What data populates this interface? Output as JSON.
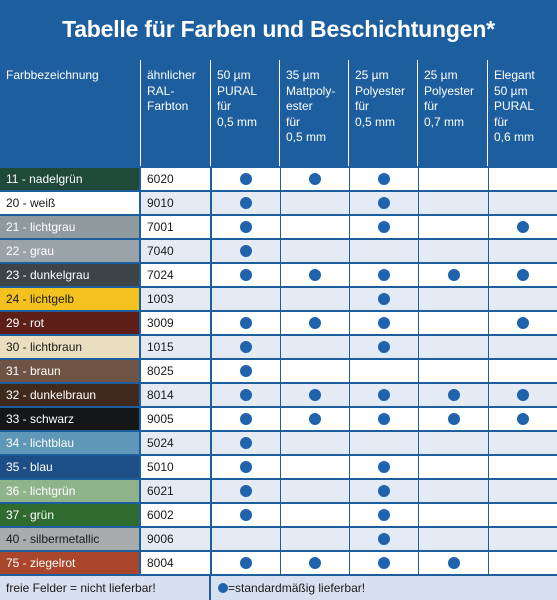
{
  "title": "Tabelle für Farben und Beschichtungen*",
  "headers": [
    "Farbbezeichnung",
    "ähnlicher\nRAL-\nFarbton",
    "50 µm\nPURAL\nfür\n0,5 mm",
    "35 µm\nMattpoly-\nester\nfür\n0,5 mm",
    "25 µm\nPolyester\nfür\n0,5 mm",
    "25 µm\nPolyester\nfür\n0,7 mm",
    "Elegant\n50 µm\nPURAL\nfür\n0,6 mm"
  ],
  "rows": [
    {
      "name": "11 - nadelgrün",
      "ral": "6020",
      "swatch": "#1f4a3a",
      "text": "#ffffff",
      "marks": [
        true,
        true,
        true,
        false,
        false
      ]
    },
    {
      "name": "20 - weiß",
      "ral": "9010",
      "swatch": "#ffffff",
      "text": "#1a1a1a",
      "marks": [
        true,
        false,
        true,
        false,
        false
      ]
    },
    {
      "name": "21 - lichtgrau",
      "ral": "7001",
      "swatch": "#8f9a9e",
      "text": "#ffffff",
      "marks": [
        true,
        false,
        true,
        false,
        true
      ]
    },
    {
      "name": "22 - grau",
      "ral": "7040",
      "swatch": "#9aa3a8",
      "text": "#ffffff",
      "marks": [
        true,
        false,
        false,
        false,
        false
      ]
    },
    {
      "name": "23 - dunkelgrau",
      "ral": "7024",
      "swatch": "#3c4448",
      "text": "#ffffff",
      "marks": [
        true,
        true,
        true,
        true,
        true
      ]
    },
    {
      "name": "24 - lichtgelb",
      "ral": "1003",
      "swatch": "#f4c21f",
      "text": "#1a1a1a",
      "marks": [
        false,
        false,
        true,
        false,
        false
      ]
    },
    {
      "name": "29 - rot",
      "ral": "3009",
      "swatch": "#5e1f18",
      "text": "#ffffff",
      "marks": [
        true,
        true,
        true,
        false,
        true
      ]
    },
    {
      "name": "30 - lichtbraun",
      "ral": "1015",
      "swatch": "#e9dfbf",
      "text": "#1a1a1a",
      "marks": [
        true,
        false,
        true,
        false,
        false
      ]
    },
    {
      "name": "31 - braun",
      "ral": "8025",
      "swatch": "#6f5446",
      "text": "#ffffff",
      "marks": [
        true,
        false,
        false,
        false,
        false
      ]
    },
    {
      "name": "32 - dunkelbraun",
      "ral": "8014",
      "swatch": "#3f2a1d",
      "text": "#ffffff",
      "marks": [
        true,
        true,
        true,
        true,
        true
      ]
    },
    {
      "name": "33 - schwarz",
      "ral": "9005",
      "swatch": "#141618",
      "text": "#ffffff",
      "marks": [
        true,
        true,
        true,
        true,
        true
      ]
    },
    {
      "name": "34 - lichtblau",
      "ral": "5024",
      "swatch": "#5f97b9",
      "text": "#ffffff",
      "marks": [
        true,
        false,
        false,
        false,
        false
      ]
    },
    {
      "name": "35 - blau",
      "ral": "5010",
      "swatch": "#1d4f86",
      "text": "#ffffff",
      "marks": [
        true,
        false,
        true,
        false,
        false
      ]
    },
    {
      "name": "36 - lichtgrün",
      "ral": "6021",
      "swatch": "#8fb48c",
      "text": "#ffffff",
      "marks": [
        true,
        false,
        true,
        false,
        false
      ]
    },
    {
      "name": "37 - grün",
      "ral": "6002",
      "swatch": "#2f6b2e",
      "text": "#ffffff",
      "marks": [
        true,
        false,
        true,
        false,
        false
      ]
    },
    {
      "name": "40 - silbermetallic",
      "ral": "9006",
      "swatch": "#a8acad",
      "text": "#1a1a1a",
      "marks": [
        false,
        false,
        true,
        false,
        false
      ]
    },
    {
      "name": "75 - ziegelrot",
      "ral": "8004",
      "swatch": "#a9462b",
      "text": "#ffffff",
      "marks": [
        true,
        true,
        true,
        true,
        false
      ]
    }
  ],
  "footer": {
    "left": "freie Felder = nicht lieferbar!",
    "right": "=standardmäßig lieferbar!"
  },
  "colors": {
    "header_bg": "#1d5f9e",
    "row_light": "#e4ebf5",
    "row_white": "#ffffff",
    "dot": "#1f63ad"
  }
}
